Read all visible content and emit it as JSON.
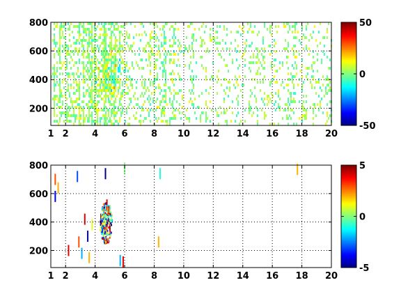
{
  "chart_data": [
    {
      "type": "heatmap",
      "title": "",
      "xlabel": "",
      "ylabel": "",
      "xlim": [
        1,
        20
      ],
      "ylim": [
        80,
        800
      ],
      "x_ticks": [
        1,
        2,
        4,
        6,
        8,
        10,
        12,
        14,
        16,
        18,
        20
      ],
      "y_ticks": [
        200,
        400,
        600,
        800
      ],
      "grid": true,
      "colorbar": {
        "min": -50,
        "max": 50,
        "ticks": [
          -50,
          0,
          50
        ],
        "colormap": "jet"
      },
      "density_profile": [
        {
          "x": 1.1,
          "density": 0.85
        },
        {
          "x": 1.5,
          "density": 0.9
        },
        {
          "x": 2.0,
          "density": 0.9
        },
        {
          "x": 2.6,
          "density": 0.85
        },
        {
          "x": 3.2,
          "density": 0.8
        },
        {
          "x": 3.8,
          "density": 0.85
        },
        {
          "x": 4.4,
          "density": 0.9
        },
        {
          "x": 5.0,
          "density": 0.85
        },
        {
          "x": 5.6,
          "density": 0.6
        },
        {
          "x": 6.5,
          "density": 0.4
        },
        {
          "x": 7.5,
          "density": 0.4
        },
        {
          "x": 8.5,
          "density": 0.6
        },
        {
          "x": 10,
          "density": 0.3
        },
        {
          "x": 12,
          "density": 0.3
        },
        {
          "x": 14,
          "density": 0.25
        },
        {
          "x": 16,
          "density": 0.3
        },
        {
          "x": 17.5,
          "density": 0.45
        },
        {
          "x": 19,
          "density": 0.3
        }
      ],
      "cluster": {
        "x": 4.8,
        "y": 480,
        "value_range": [
          -10,
          20
        ]
      }
    },
    {
      "type": "heatmap",
      "title": "",
      "xlabel": "",
      "ylabel": "",
      "xlim": [
        1,
        20
      ],
      "ylim": [
        80,
        800
      ],
      "x_ticks": [
        1,
        2,
        4,
        6,
        8,
        10,
        12,
        14,
        16,
        18,
        20
      ],
      "y_ticks": [
        200,
        400,
        600,
        800
      ],
      "grid": true,
      "colorbar": {
        "min": -5,
        "max": 5,
        "ticks": [
          -5,
          0,
          5
        ],
        "colormap": "jet"
      },
      "points": [
        {
          "x": 1.3,
          "y": 700,
          "v": 3
        },
        {
          "x": 1.3,
          "y": 580,
          "v": -4
        },
        {
          "x": 1.5,
          "y": 640,
          "v": 2
        },
        {
          "x": 2.2,
          "y": 200,
          "v": 4
        },
        {
          "x": 2.8,
          "y": 720,
          "v": -3
        },
        {
          "x": 2.9,
          "y": 260,
          "v": 3
        },
        {
          "x": 3.1,
          "y": 180,
          "v": -2
        },
        {
          "x": 3.3,
          "y": 420,
          "v": 4
        },
        {
          "x": 3.5,
          "y": 300,
          "v": -4
        },
        {
          "x": 3.6,
          "y": 150,
          "v": 2
        },
        {
          "x": 3.8,
          "y": 380,
          "v": 1
        },
        {
          "x": 4.4,
          "y": 420,
          "v": 5
        },
        {
          "x": 4.5,
          "y": 360,
          "v": -3
        },
        {
          "x": 4.6,
          "y": 460,
          "v": 3
        },
        {
          "x": 4.7,
          "y": 400,
          "v": -1
        },
        {
          "x": 4.8,
          "y": 520,
          "v": 4
        },
        {
          "x": 4.8,
          "y": 340,
          "v": 2
        },
        {
          "x": 4.9,
          "y": 440,
          "v": -4
        },
        {
          "x": 5.0,
          "y": 380,
          "v": 5
        },
        {
          "x": 5.0,
          "y": 480,
          "v": 0
        },
        {
          "x": 4.6,
          "y": 320,
          "v": 1
        },
        {
          "x": 4.7,
          "y": 740,
          "v": -5
        },
        {
          "x": 5.9,
          "y": 120,
          "v": 4
        },
        {
          "x": 5.7,
          "y": 130,
          "v": -2
        },
        {
          "x": 6.0,
          "y": 780,
          "v": 0
        },
        {
          "x": 8.4,
          "y": 740,
          "v": -1
        },
        {
          "x": 8.3,
          "y": 260,
          "v": 2
        },
        {
          "x": 17.7,
          "y": 770,
          "v": 2
        }
      ],
      "cluster": {
        "x": 4.7,
        "y": 400,
        "value_range": [
          -5,
          5
        ]
      }
    }
  ]
}
